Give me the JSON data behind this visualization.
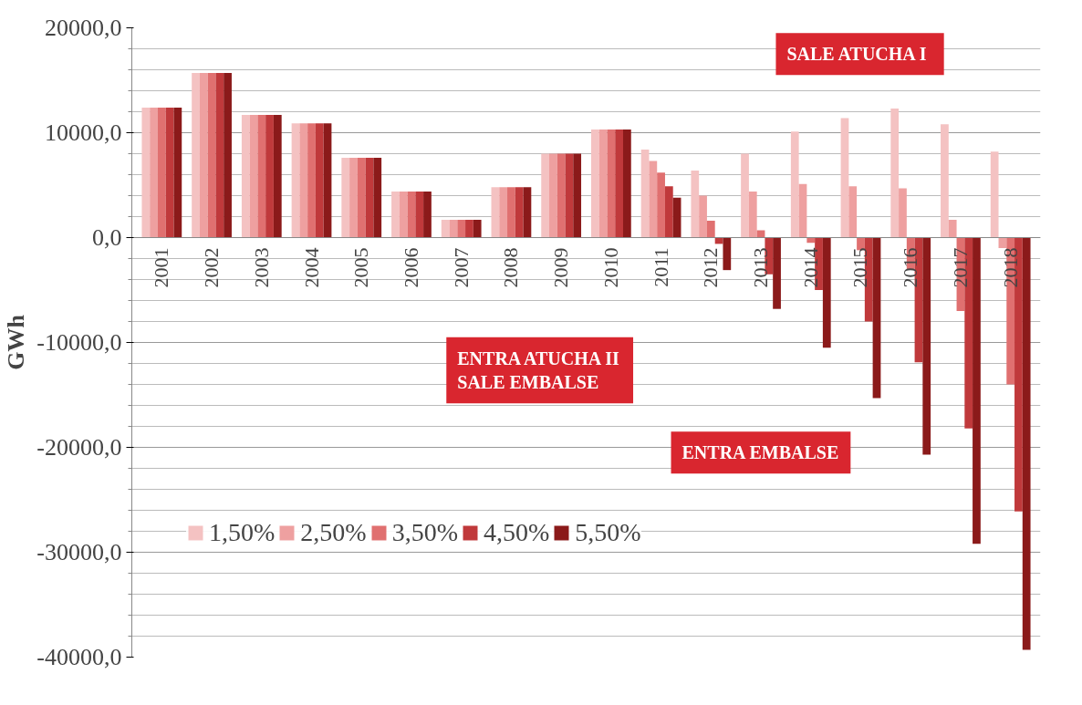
{
  "chart_data": {
    "type": "bar",
    "ylabel": "GWh",
    "categories": [
      "2001",
      "2002",
      "2003",
      "2004",
      "2005",
      "2006",
      "2007",
      "2008",
      "2009",
      "2010",
      "2011",
      "2012",
      "2013",
      "2014",
      "2015",
      "2016",
      "2017",
      "2018"
    ],
    "series": [
      {
        "name": "1,50%",
        "color": "#f4c2c2",
        "values": [
          12400,
          15700,
          11700,
          10900,
          7600,
          4400,
          1700,
          4800,
          8000,
          10300,
          8400,
          6400,
          8000,
          10100,
          11400,
          12300,
          10800,
          8200
        ]
      },
      {
        "name": "2,50%",
        "color": "#eea0a0",
        "values": [
          12400,
          15700,
          11700,
          10900,
          7600,
          4400,
          1700,
          4800,
          8000,
          10300,
          7300,
          4000,
          4400,
          5100,
          4900,
          4700,
          1700,
          -1000
        ]
      },
      {
        "name": "3,50%",
        "color": "#e07070",
        "values": [
          12400,
          15700,
          11700,
          10900,
          7600,
          4400,
          1700,
          4800,
          8000,
          10300,
          6200,
          1600,
          700,
          -500,
          -1200,
          -3000,
          -7000,
          -14000
        ]
      },
      {
        "name": "4,50%",
        "color": "#c0393b",
        "values": [
          12400,
          15700,
          11700,
          10900,
          7600,
          4400,
          1700,
          4800,
          8000,
          10300,
          4900,
          -600,
          -3500,
          -5000,
          -8000,
          -11900,
          -18200,
          -26100
        ]
      },
      {
        "name": "5,50%",
        "color": "#8b1a1a",
        "values": [
          12400,
          15700,
          11700,
          10900,
          7600,
          4400,
          1700,
          4800,
          8000,
          10300,
          3800,
          -3100,
          -6800,
          -10500,
          -15300,
          -20700,
          -29200,
          -39300
        ]
      }
    ],
    "ylim": [
      -40000,
      20000
    ],
    "yticks": [
      {
        "value": -40000,
        "label": "-40000,0"
      },
      {
        "value": -30000,
        "label": "-30000,0"
      },
      {
        "value": -20000,
        "label": "-20000,0"
      },
      {
        "value": -10000,
        "label": "-10000,0"
      },
      {
        "value": 0,
        "label": "0,0"
      },
      {
        "value": 10000,
        "label": "10000,0"
      },
      {
        "value": 20000,
        "label": "20000,0"
      }
    ],
    "grid": "y",
    "legend": "bottom left",
    "annotations": [
      "SALE ATUCHA  I",
      "ENTRA ATUCHA II\nSALE EMBALSE",
      "ENTRA EMBALSE"
    ]
  }
}
